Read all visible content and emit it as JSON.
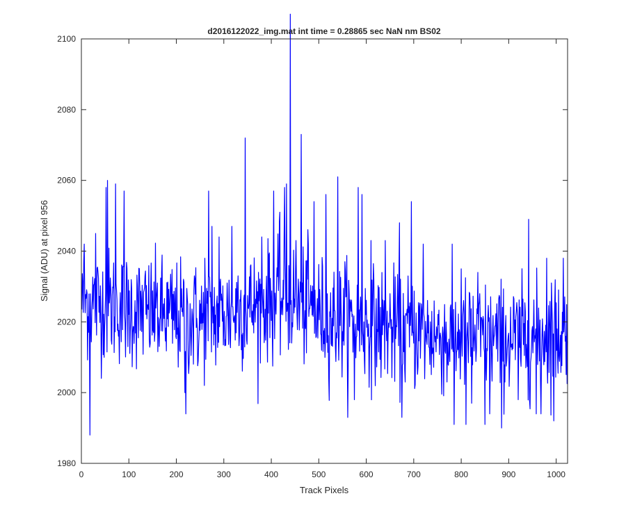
{
  "chart_data": {
    "type": "line",
    "title": "d2016122022_img.mat int time = 0.28865 sec  NaN nm BS02",
    "xlabel": "Track Pixels",
    "ylabel": "Signal (ADU) at pixel 956",
    "xlim": [
      0,
      1024
    ],
    "ylim": [
      1980,
      2100
    ],
    "x_ticks": [
      "0",
      "100",
      "200",
      "300",
      "400",
      "500",
      "600",
      "700",
      "800",
      "900",
      "1000"
    ],
    "y_ticks": [
      "1980",
      "2000",
      "2020",
      "2040",
      "2060",
      "2080",
      "2100"
    ],
    "grid": false,
    "legend": "none",
    "series": [
      {
        "color": "#0000ff",
        "x_start": 1,
        "x_step": 1,
        "baseline_segments": [
          [
            1,
            2026
          ],
          [
            250,
            2020
          ],
          [
            430,
            2027
          ],
          [
            520,
            2021
          ],
          [
            750,
            2016
          ],
          [
            900,
            2015
          ],
          [
            1024,
            2017
          ]
        ],
        "noise_sd": 8,
        "peaks": [
          [
            3,
            2031
          ],
          [
            6,
            2042
          ],
          [
            18,
            1988
          ],
          [
            30,
            2045
          ],
          [
            52,
            2058
          ],
          [
            55,
            2060
          ],
          [
            72,
            2059
          ],
          [
            90,
            2057
          ],
          [
            98,
            2013
          ],
          [
            118,
            2030
          ],
          [
            160,
            2031
          ],
          [
            218,
            2000
          ],
          [
            220,
            1994
          ],
          [
            238,
            2033
          ],
          [
            260,
            2038
          ],
          [
            268,
            2057
          ],
          [
            275,
            2047
          ],
          [
            290,
            2044
          ],
          [
            317,
            2047
          ],
          [
            330,
            2033
          ],
          [
            345,
            2072
          ],
          [
            380,
            2044
          ],
          [
            395,
            2039
          ],
          [
            405,
            2057
          ],
          [
            418,
            2051
          ],
          [
            428,
            2058
          ],
          [
            432,
            2059
          ],
          [
            440,
            2107
          ],
          [
            452,
            2043
          ],
          [
            463,
            2073
          ],
          [
            478,
            2042
          ],
          [
            490,
            2054
          ],
          [
            515,
            2056
          ],
          [
            540,
            2061
          ],
          [
            555,
            2037
          ],
          [
            575,
            1998
          ],
          [
            583,
            2058
          ],
          [
            591,
            2056
          ],
          [
            610,
            2043
          ],
          [
            640,
            2043
          ],
          [
            670,
            2048
          ],
          [
            675,
            1993
          ],
          [
            695,
            2054
          ],
          [
            720,
            2042
          ],
          [
            770,
            2003
          ],
          [
            785,
            1991
          ],
          [
            800,
            2035
          ],
          [
            810,
            1991
          ],
          [
            822,
            1997
          ],
          [
            835,
            2034
          ],
          [
            850,
            1991
          ],
          [
            860,
            1994
          ],
          [
            885,
            1990
          ],
          [
            920,
            1998
          ],
          [
            942,
            2049
          ],
          [
            958,
            1994
          ],
          [
            968,
            1994
          ],
          [
            980,
            2038
          ],
          [
            990,
            2031
          ],
          [
            995,
            1992
          ],
          [
            1015,
            2038
          ]
        ]
      }
    ]
  }
}
